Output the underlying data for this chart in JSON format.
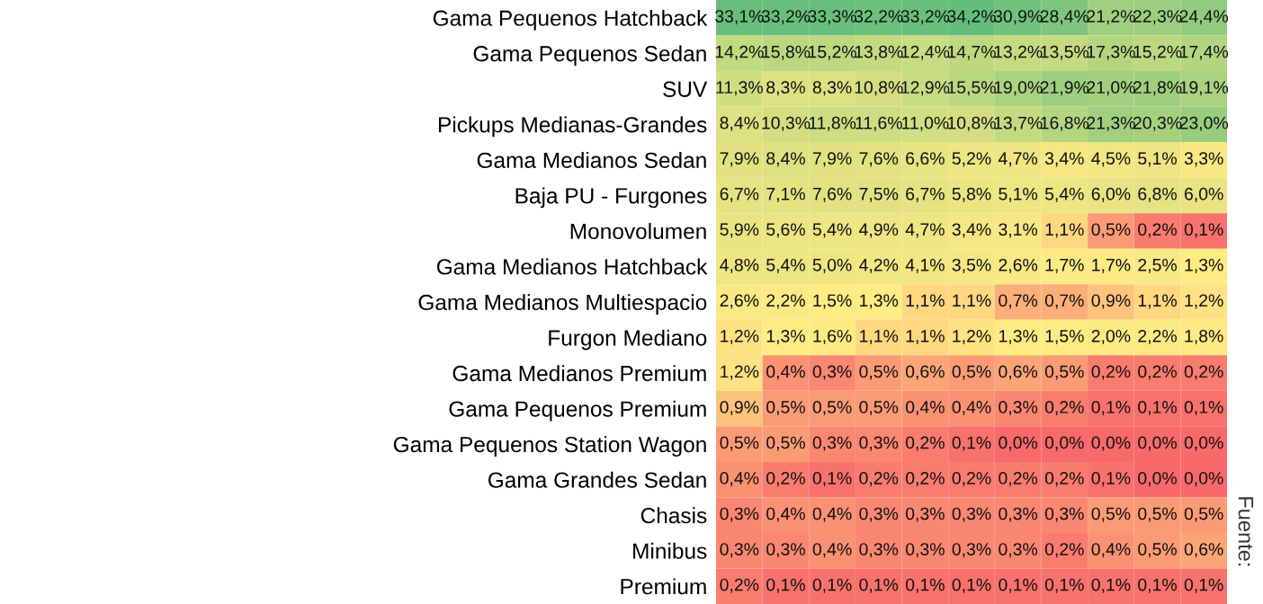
{
  "chart_data": {
    "type": "heatmap",
    "categories": [
      null,
      null,
      null,
      null,
      null,
      null,
      null,
      null,
      null,
      null,
      null
    ],
    "y_categories": [
      "Gama Pequenos Hatchback",
      "Gama Pequenos Sedan",
      "SUV",
      "Pickups Medianas-Grandes",
      "Gama Medianos Sedan",
      "Baja PU - Furgones",
      "Monovolumen",
      "Gama Medianos Hatchback",
      "Gama Medianos Multiespacio",
      "Furgon Mediano",
      "Gama Medianos Premium",
      "Gama Pequenos Premium",
      "Gama Pequenos Station Wagon",
      "Gama Grandes Sedan",
      "Chasis",
      "Minibus",
      "Premium"
    ],
    "colors": [
      "#f8696b",
      "#ffeb84",
      "#63be7b"
    ],
    "cells": [
      [
        33.1,
        33.2,
        33.3,
        32.2,
        33.2,
        34.2,
        30.9,
        28.4,
        21.2,
        22.3,
        24.4
      ],
      [
        14.2,
        15.8,
        15.2,
        13.8,
        12.4,
        14.7,
        13.2,
        13.5,
        17.3,
        15.2,
        17.4
      ],
      [
        11.3,
        8.3,
        8.3,
        10.8,
        12.9,
        15.5,
        19.0,
        21.9,
        21.0,
        21.8,
        19.1
      ],
      [
        8.4,
        10.3,
        11.8,
        11.6,
        11.0,
        10.8,
        13.7,
        16.8,
        21.3,
        20.3,
        23.0
      ],
      [
        7.9,
        8.4,
        7.9,
        7.6,
        6.6,
        5.2,
        4.7,
        3.4,
        4.5,
        5.1,
        3.3
      ],
      [
        6.7,
        7.1,
        7.6,
        7.5,
        6.7,
        5.8,
        5.1,
        5.4,
        6.0,
        6.8,
        6.0
      ],
      [
        5.9,
        5.6,
        5.4,
        4.9,
        4.7,
        3.4,
        3.1,
        1.1,
        0.5,
        0.2,
        0.1
      ],
      [
        4.8,
        5.4,
        5.0,
        4.2,
        4.1,
        3.5,
        2.6,
        1.7,
        1.7,
        2.5,
        1.3
      ],
      [
        2.6,
        2.2,
        1.5,
        1.3,
        1.1,
        1.1,
        0.7,
        0.7,
        0.9,
        1.1,
        1.2
      ],
      [
        1.2,
        1.3,
        1.6,
        1.1,
        1.1,
        1.2,
        1.3,
        1.5,
        2.0,
        2.2,
        1.8
      ],
      [
        1.2,
        0.4,
        0.3,
        0.5,
        0.6,
        0.5,
        0.6,
        0.5,
        0.2,
        0.2,
        0.2
      ],
      [
        0.9,
        0.5,
        0.5,
        0.5,
        0.4,
        0.4,
        0.3,
        0.2,
        0.1,
        0.1,
        0.1
      ],
      [
        0.5,
        0.5,
        0.3,
        0.3,
        0.2,
        0.1,
        0.0,
        0.0,
        0.0,
        0.0,
        0.0
      ],
      [
        0.4,
        0.2,
        0.1,
        0.2,
        0.2,
        0.2,
        0.2,
        0.2,
        0.1,
        0.0,
        0.0
      ],
      [
        0.3,
        0.4,
        0.4,
        0.3,
        0.3,
        0.3,
        0.3,
        0.3,
        0.5,
        0.5,
        0.5
      ],
      [
        0.3,
        0.3,
        0.4,
        0.3,
        0.3,
        0.3,
        0.3,
        0.2,
        0.4,
        0.5,
        0.6
      ],
      [
        0.2,
        0.1,
        0.1,
        0.1,
        0.1,
        0.1,
        0.1,
        0.1,
        0.1,
        0.1,
        0.1
      ]
    ],
    "cell_labels": [
      [
        "33,1%",
        "33,2%",
        "33,3%",
        "32,2%",
        "33,2%",
        "34,2%",
        "30,9%",
        "28,4%",
        "21,2%",
        "22,3%",
        "24,4%"
      ],
      [
        "14,2%",
        "15,8%",
        "15,2%",
        "13,8%",
        "12,4%",
        "14,7%",
        "13,2%",
        "13,5%",
        "17,3%",
        "15,2%",
        "17,4%"
      ],
      [
        "11,3%",
        "8,3%",
        "8,3%",
        "10,8%",
        "12,9%",
        "15,5%",
        "19,0%",
        "21,9%",
        "21,0%",
        "21,8%",
        "19,1%"
      ],
      [
        "8,4%",
        "10,3%",
        "11,8%",
        "11,6%",
        "11,0%",
        "10,8%",
        "13,7%",
        "16,8%",
        "21,3%",
        "20,3%",
        "23,0%"
      ],
      [
        "7,9%",
        "8,4%",
        "7,9%",
        "7,6%",
        "6,6%",
        "5,2%",
        "4,7%",
        "3,4%",
        "4,5%",
        "5,1%",
        "3,3%"
      ],
      [
        "6,7%",
        "7,1%",
        "7,6%",
        "7,5%",
        "6,7%",
        "5,8%",
        "5,1%",
        "5,4%",
        "6,0%",
        "6,8%",
        "6,0%"
      ],
      [
        "5,9%",
        "5,6%",
        "5,4%",
        "4,9%",
        "4,7%",
        "3,4%",
        "3,1%",
        "1,1%",
        "0,5%",
        "0,2%",
        "0,1%"
      ],
      [
        "4,8%",
        "5,4%",
        "5,0%",
        "4,2%",
        "4,1%",
        "3,5%",
        "2,6%",
        "1,7%",
        "1,7%",
        "2,5%",
        "1,3%"
      ],
      [
        "2,6%",
        "2,2%",
        "1,5%",
        "1,3%",
        "1,1%",
        "1,1%",
        "0,7%",
        "0,7%",
        "0,9%",
        "1,1%",
        "1,2%"
      ],
      [
        "1,2%",
        "1,3%",
        "1,6%",
        "1,1%",
        "1,1%",
        "1,2%",
        "1,3%",
        "1,5%",
        "2,0%",
        "2,2%",
        "1,8%"
      ],
      [
        "1,2%",
        "0,4%",
        "0,3%",
        "0,5%",
        "0,6%",
        "0,5%",
        "0,6%",
        "0,5%",
        "0,2%",
        "0,2%",
        "0,2%"
      ],
      [
        "0,9%",
        "0,5%",
        "0,5%",
        "0,5%",
        "0,4%",
        "0,4%",
        "0,3%",
        "0,2%",
        "0,1%",
        "0,1%",
        "0,1%"
      ],
      [
        "0,5%",
        "0,5%",
        "0,3%",
        "0,3%",
        "0,2%",
        "0,1%",
        "0,0%",
        "0,0%",
        "0,0%",
        "0,0%",
        "0,0%"
      ],
      [
        "0,4%",
        "0,2%",
        "0,1%",
        "0,2%",
        "0,2%",
        "0,2%",
        "0,2%",
        "0,2%",
        "0,1%",
        "0,0%",
        "0,0%"
      ],
      [
        "0,3%",
        "0,4%",
        "0,4%",
        "0,3%",
        "0,3%",
        "0,3%",
        "0,3%",
        "0,3%",
        "0,5%",
        "0,5%",
        "0,5%"
      ],
      [
        "0,3%",
        "0,3%",
        "0,4%",
        "0,3%",
        "0,3%",
        "0,3%",
        "0,3%",
        "0,2%",
        "0,4%",
        "0,5%",
        "0,6%"
      ],
      [
        "0,2%",
        "0,1%",
        "0,1%",
        "0,1%",
        "0,1%",
        "0,1%",
        "0,1%",
        "0,1%",
        "0,1%",
        "0,1%",
        "0,1%"
      ]
    ],
    "annotations": [
      "Fuente:"
    ]
  }
}
